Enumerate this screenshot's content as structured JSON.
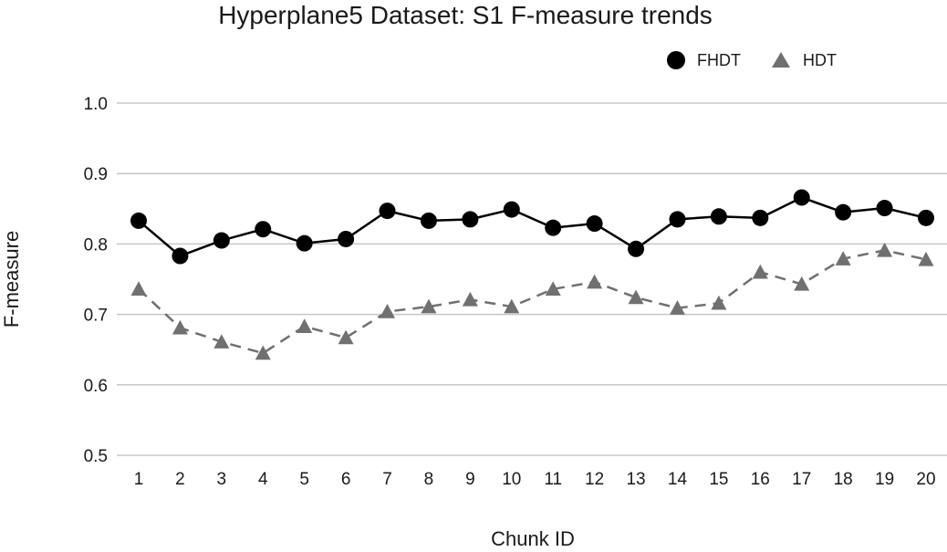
{
  "chart_data": {
    "type": "line",
    "title": "Hyperplane5 Dataset: S1 F-measure trends",
    "xlabel": "Chunk ID",
    "ylabel": "F-measure",
    "x": [
      1,
      2,
      3,
      4,
      5,
      6,
      7,
      8,
      9,
      10,
      11,
      12,
      13,
      14,
      15,
      16,
      17,
      18,
      19,
      20
    ],
    "y_ticks": [
      "0.5",
      "0.6",
      "0.7",
      "0.8",
      "0.9",
      "1.0"
    ],
    "ylim": [
      0.5,
      1.0
    ],
    "grid": true,
    "legend_position": "top-right",
    "series": [
      {
        "name": "FHDT",
        "marker": "circle",
        "line_style": "solid",
        "color": "#000000",
        "values": [
          0.833,
          0.783,
          0.805,
          0.821,
          0.801,
          0.807,
          0.847,
          0.833,
          0.835,
          0.849,
          0.823,
          0.829,
          0.793,
          0.835,
          0.839,
          0.837,
          0.866,
          0.845,
          0.851,
          0.837
        ]
      },
      {
        "name": "HDT",
        "marker": "triangle",
        "line_style": "dashed",
        "color": "#707070",
        "values": [
          0.736,
          0.681,
          0.661,
          0.645,
          0.683,
          0.667,
          0.704,
          0.711,
          0.721,
          0.711,
          0.736,
          0.746,
          0.724,
          0.709,
          0.716,
          0.76,
          0.743,
          0.779,
          0.791,
          0.778
        ]
      }
    ]
  }
}
